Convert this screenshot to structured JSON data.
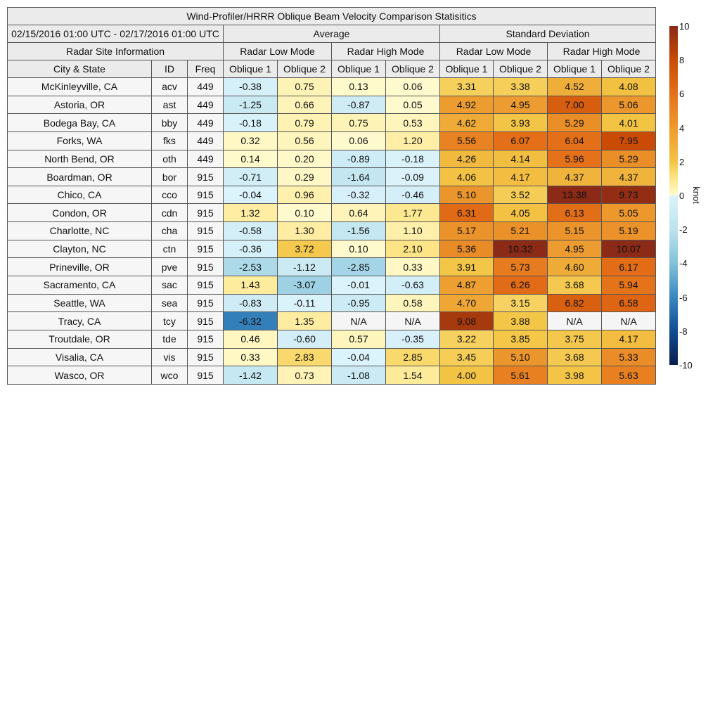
{
  "chart_data": {
    "type": "heatmap",
    "title": "Wind-Profiler/HRRR Oblique Beam Velocity Comparison Statisitics",
    "date_range": "02/15/2016 01:00 UTC - 02/17/2016 01:00 UTC",
    "groups": [
      "Average",
      "Standard Deviation"
    ],
    "site_info_label": "Radar Site Information",
    "modes": [
      "Radar Low Mode",
      "Radar High Mode"
    ],
    "obliques": [
      "Oblique 1",
      "Oblique 2"
    ],
    "info_columns": [
      "City & State",
      "ID",
      "Freq"
    ],
    "colorbar": {
      "label": "knot",
      "range": [
        -10,
        10
      ],
      "ticks": [
        "10",
        "8",
        "6",
        "4",
        "2",
        "0",
        "-2",
        "-4",
        "-6",
        "-8",
        "-10"
      ]
    },
    "na_color": "#f5f5f5",
    "rows": [
      {
        "city": "McKinleyville, CA",
        "id": "acv",
        "freq": "449",
        "values": [
          "-0.38",
          "0.75",
          "0.13",
          "0.06",
          "3.31",
          "3.38",
          "4.52",
          "4.08"
        ]
      },
      {
        "city": "Astoria, OR",
        "id": "ast",
        "freq": "449",
        "values": [
          "-1.25",
          "0.66",
          "-0.87",
          "0.05",
          "4.92",
          "4.95",
          "7.00",
          "5.06"
        ]
      },
      {
        "city": "Bodega Bay, CA",
        "id": "bby",
        "freq": "449",
        "values": [
          "-0.18",
          "0.79",
          "0.75",
          "0.53",
          "4.62",
          "3.93",
          "5.29",
          "4.01"
        ]
      },
      {
        "city": "Forks, WA",
        "id": "fks",
        "freq": "449",
        "values": [
          "0.32",
          "0.56",
          "0.06",
          "1.20",
          "5.56",
          "6.07",
          "6.04",
          "7.95"
        ]
      },
      {
        "city": "North Bend, OR",
        "id": "oth",
        "freq": "449",
        "values": [
          "0.14",
          "0.20",
          "-0.89",
          "-0.18",
          "4.26",
          "4.14",
          "5.96",
          "5.29"
        ]
      },
      {
        "city": "Boardman, OR",
        "id": "bor",
        "freq": "915",
        "values": [
          "-0.71",
          "0.29",
          "-1.64",
          "-0.09",
          "4.06",
          "4.17",
          "4.37",
          "4.37"
        ]
      },
      {
        "city": "Chico, CA",
        "id": "cco",
        "freq": "915",
        "values": [
          "-0.04",
          "0.96",
          "-0.32",
          "-0.46",
          "5.10",
          "3.52",
          "13.38",
          "9.73"
        ]
      },
      {
        "city": "Condon, OR",
        "id": "cdn",
        "freq": "915",
        "values": [
          "1.32",
          "0.10",
          "0.64",
          "1.77",
          "6.31",
          "4.05",
          "6.13",
          "5.05"
        ]
      },
      {
        "city": "Charlotte, NC",
        "id": "cha",
        "freq": "915",
        "values": [
          "-0.58",
          "1.30",
          "-1.56",
          "1.10",
          "5.17",
          "5.21",
          "5.15",
          "5.19"
        ]
      },
      {
        "city": "Clayton, NC",
        "id": "ctn",
        "freq": "915",
        "values": [
          "-0.36",
          "3.72",
          "0.10",
          "2.10",
          "5.36",
          "10.32",
          "4.95",
          "10.07"
        ]
      },
      {
        "city": "Prineville, OR",
        "id": "pve",
        "freq": "915",
        "values": [
          "-2.53",
          "-1.12",
          "-2.85",
          "0.33",
          "3.91",
          "5.73",
          "4.60",
          "6.17"
        ]
      },
      {
        "city": "Sacramento, CA",
        "id": "sac",
        "freq": "915",
        "values": [
          "1.43",
          "-3.07",
          "-0.01",
          "-0.63",
          "4.87",
          "6.26",
          "3.68",
          "5.94"
        ]
      },
      {
        "city": "Seattle, WA",
        "id": "sea",
        "freq": "915",
        "values": [
          "-0.83",
          "-0.11",
          "-0.95",
          "0.58",
          "4.70",
          "3.15",
          "6.82",
          "6.58"
        ]
      },
      {
        "city": "Tracy, CA",
        "id": "tcy",
        "freq": "915",
        "values": [
          "-6.32",
          "1.35",
          "N/A",
          "N/A",
          "9.08",
          "3.88",
          "N/A",
          "N/A"
        ]
      },
      {
        "city": "Troutdale, OR",
        "id": "tde",
        "freq": "915",
        "values": [
          "0.46",
          "-0.60",
          "0.57",
          "-0.35",
          "3.22",
          "3.85",
          "3.75",
          "4.17"
        ]
      },
      {
        "city": "Visalia, CA",
        "id": "vis",
        "freq": "915",
        "values": [
          "0.33",
          "2.83",
          "-0.04",
          "2.85",
          "3.45",
          "5.10",
          "3.68",
          "5.33"
        ]
      },
      {
        "city": "Wasco, OR",
        "id": "wco",
        "freq": "915",
        "values": [
          "-1.42",
          "0.73",
          "-1.08",
          "1.54",
          "4.00",
          "5.61",
          "3.98",
          "5.63"
        ]
      }
    ]
  }
}
